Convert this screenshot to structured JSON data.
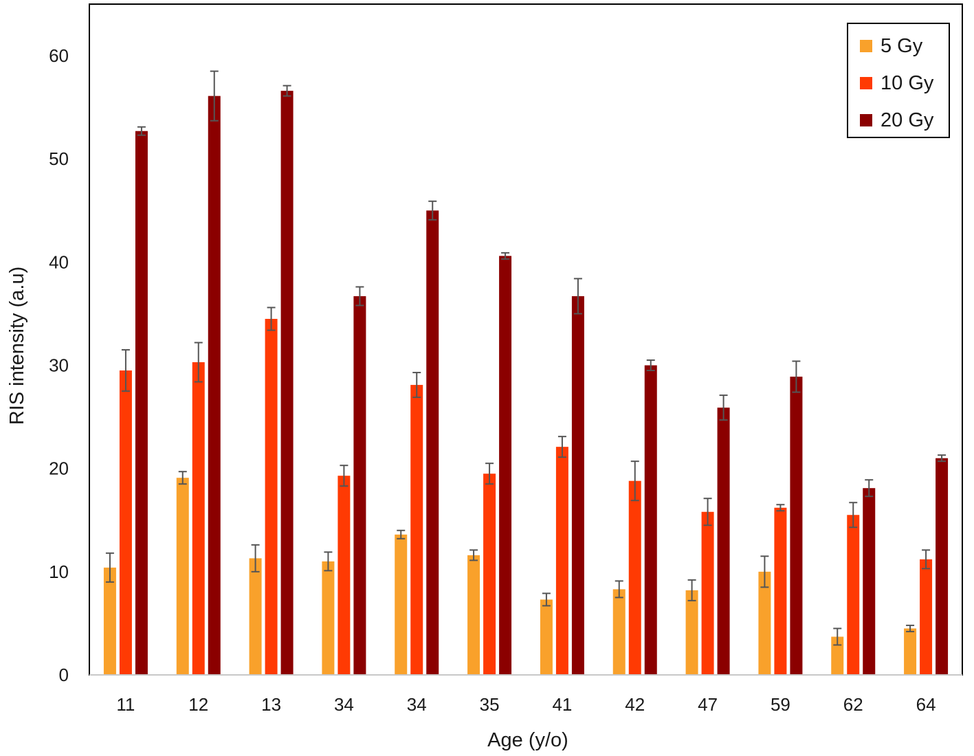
{
  "chart_data": {
    "type": "bar",
    "categories": [
      "11",
      "12",
      "13",
      "34",
      "34",
      "35",
      "41",
      "42",
      "47",
      "59",
      "62",
      "64"
    ],
    "series": [
      {
        "name": "5 Gy",
        "color": "#F9A12B",
        "values": [
          10.4,
          19.1,
          11.3,
          11.0,
          13.6,
          11.6,
          7.3,
          8.3,
          8.2,
          10.0,
          3.7,
          4.5
        ],
        "errors": [
          1.4,
          0.6,
          1.3,
          0.9,
          0.4,
          0.5,
          0.6,
          0.8,
          1.0,
          1.5,
          0.8,
          0.3
        ]
      },
      {
        "name": "10 Gy",
        "color": "#FF3A03",
        "values": [
          29.5,
          30.3,
          34.5,
          19.3,
          28.1,
          19.5,
          22.1,
          18.8,
          15.8,
          16.2,
          15.5,
          11.2
        ],
        "errors": [
          2.0,
          1.9,
          1.1,
          1.0,
          1.2,
          1.0,
          1.0,
          1.9,
          1.3,
          0.3,
          1.2,
          0.9
        ]
      },
      {
        "name": "20 Gy",
        "color": "#8B0000",
        "values": [
          52.7,
          56.1,
          56.6,
          36.7,
          45.0,
          40.6,
          36.7,
          30.0,
          25.9,
          28.9,
          18.1,
          21.0
        ],
        "errors": [
          0.4,
          2.4,
          0.5,
          0.9,
          0.9,
          0.3,
          1.7,
          0.5,
          1.2,
          1.5,
          0.8,
          0.3
        ]
      }
    ],
    "xlabel": "Age (y/o)",
    "ylabel": "RIS intensity (a.u)",
    "ylim": [
      0,
      65
    ],
    "yticks": [
      0,
      10,
      20,
      30,
      40,
      50,
      60
    ],
    "grid": false,
    "legend_position": "top-right",
    "error_bar_color": "#555555"
  }
}
